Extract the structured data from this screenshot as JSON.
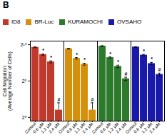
{
  "chart_data": {
    "type": "bar",
    "title": "B",
    "ylabel": "Cell Migration\n(Average Number of Cells)",
    "categories": [
      "Control",
      "0.6 μM",
      "1.2 μM",
      "2.4 μM"
    ],
    "series": [
      {
        "name": "ID8",
        "color": "#c0392b",
        "values": [
          800,
          400,
          200,
          2
        ],
        "errors": [
          30,
          25,
          20,
          2
        ],
        "annotations": [
          null,
          "*",
          "*",
          "#"
        ]
      },
      {
        "name": "BR-Luc",
        "color": "#d4900a",
        "values": [
          700,
          280,
          160,
          2
        ],
        "errors": [
          28,
          20,
          15,
          2
        ],
        "annotations": [
          null,
          "*",
          "*",
          "#"
        ]
      },
      {
        "name": "KURAMOCHI",
        "color": "#2d7a2d",
        "values": [
          900,
          300,
          130,
          40
        ],
        "errors": [
          32,
          22,
          15,
          6
        ],
        "annotations": [
          null,
          "*",
          "*",
          "#"
        ]
      },
      {
        "name": "OVSAHO",
        "color": "#1a1aaa",
        "values": [
          820,
          380,
          170,
          60
        ],
        "errors": [
          30,
          25,
          18,
          8
        ],
        "annotations": [
          null,
          "*",
          "*",
          "#"
        ]
      }
    ],
    "log": "y",
    "ylim": [
      0.7,
      1448.1546878700492
    ],
    "yticks": [
      {
        "value": 1,
        "label": "2⁰"
      },
      {
        "value": 32,
        "label": "2⁵"
      },
      {
        "value": 1024,
        "label": "2¹⁰"
      }
    ],
    "grid": false,
    "legend": "top"
  }
}
